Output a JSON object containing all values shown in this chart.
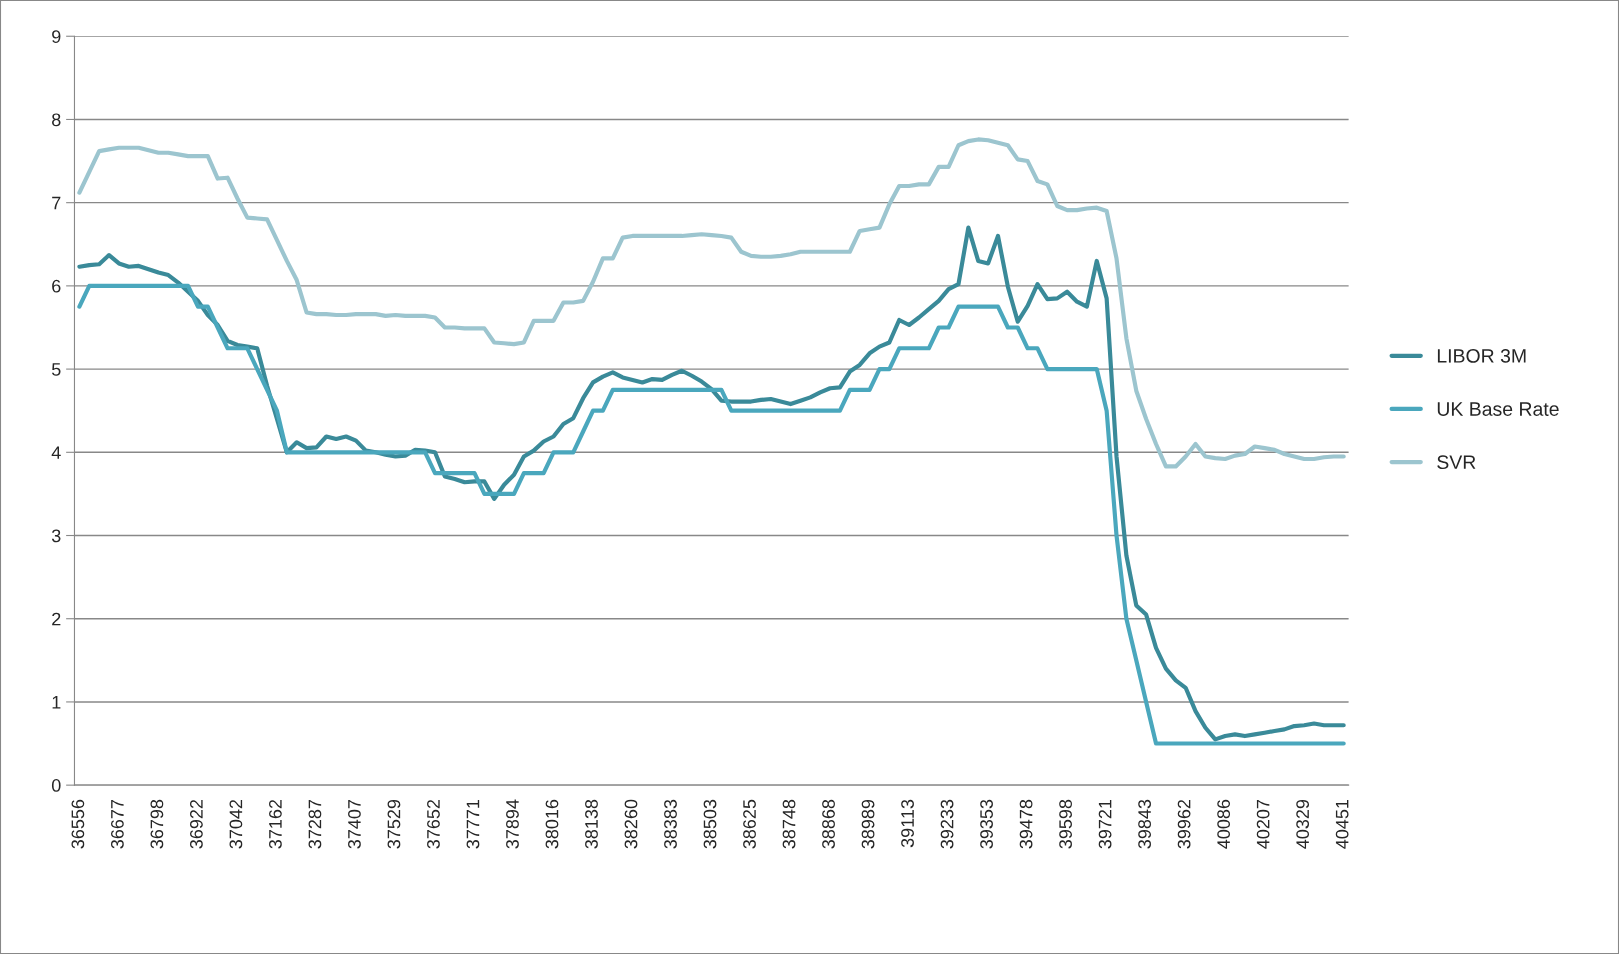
{
  "chart_data": {
    "type": "line",
    "categories": [
      "36556",
      null,
      null,
      null,
      "36677",
      null,
      null,
      null,
      "36798",
      null,
      null,
      null,
      "36922",
      null,
      null,
      null,
      "37042",
      null,
      null,
      null,
      "37162",
      null,
      null,
      null,
      "37287",
      null,
      null,
      null,
      "37407",
      null,
      null,
      null,
      "37529",
      null,
      null,
      null,
      "37652",
      null,
      null,
      null,
      "37771",
      null,
      null,
      null,
      "37894",
      null,
      null,
      null,
      "38016",
      null,
      null,
      null,
      "38138",
      null,
      null,
      null,
      "38260",
      null,
      null,
      null,
      "38383",
      null,
      null,
      null,
      "38503",
      null,
      null,
      null,
      "38625",
      null,
      null,
      null,
      "38748",
      null,
      null,
      null,
      "38868",
      null,
      null,
      null,
      "38989",
      null,
      null,
      null,
      "39113",
      null,
      null,
      null,
      "39233",
      null,
      null,
      null,
      "39353",
      null,
      null,
      null,
      "39478",
      null,
      null,
      null,
      "39598",
      null,
      null,
      null,
      "39721",
      null,
      null,
      null,
      "39843",
      null,
      null,
      null,
      "39962",
      null,
      null,
      null,
      "40086",
      null,
      null,
      null,
      "40207",
      null,
      null,
      null,
      "40329",
      null,
      null,
      null,
      "40451"
    ],
    "series": [
      {
        "name": "LIBOR 3M",
        "color": "#3a8a99",
        "values": [
          6.23,
          6.25,
          6.26,
          6.37,
          6.27,
          6.23,
          6.24,
          6.2,
          6.16,
          6.13,
          6.04,
          5.93,
          5.82,
          5.65,
          5.53,
          5.34,
          5.29,
          5.27,
          5.25,
          4.8,
          4.4,
          4.0,
          4.12,
          4.05,
          4.06,
          4.19,
          4.16,
          4.19,
          4.14,
          4.02,
          4.0,
          3.97,
          3.95,
          3.96,
          4.03,
          4.02,
          4.0,
          3.71,
          3.68,
          3.64,
          3.65,
          3.65,
          3.44,
          3.61,
          3.73,
          3.95,
          4.02,
          4.13,
          4.19,
          4.34,
          4.41,
          4.65,
          4.84,
          4.91,
          4.96,
          4.9,
          4.87,
          4.84,
          4.88,
          4.87,
          4.93,
          4.98,
          4.92,
          4.85,
          4.76,
          4.62,
          4.61,
          4.61,
          4.61,
          4.63,
          4.64,
          4.61,
          4.58,
          4.62,
          4.66,
          4.72,
          4.77,
          4.78,
          4.97,
          5.05,
          5.19,
          5.27,
          5.32,
          5.59,
          5.53,
          5.62,
          5.72,
          5.82,
          5.96,
          6.02,
          6.7,
          6.3,
          6.27,
          6.6,
          5.99,
          5.57,
          5.76,
          6.02,
          5.84,
          5.85,
          5.93,
          5.81,
          5.75,
          6.3,
          5.85,
          3.95,
          2.76,
          2.16,
          2.05,
          1.65,
          1.4,
          1.26,
          1.17,
          0.89,
          0.69,
          0.55,
          0.59,
          0.61,
          0.59,
          0.61,
          0.63,
          0.65,
          0.67,
          0.71,
          0.72,
          0.74,
          0.72,
          0.72,
          0.72
        ]
      },
      {
        "name": "UK Base Rate",
        "color": "#4aa7bd",
        "values": [
          5.75,
          6.0,
          6.0,
          6.0,
          6.0,
          6.0,
          6.0,
          6.0,
          6.0,
          6.0,
          6.0,
          6.0,
          5.75,
          5.75,
          5.5,
          5.25,
          5.25,
          5.25,
          5.0,
          4.75,
          4.5,
          4.0,
          4.0,
          4.0,
          4.0,
          4.0,
          4.0,
          4.0,
          4.0,
          4.0,
          4.0,
          4.0,
          4.0,
          4.0,
          4.0,
          4.0,
          3.75,
          3.75,
          3.75,
          3.75,
          3.75,
          3.5,
          3.5,
          3.5,
          3.5,
          3.75,
          3.75,
          3.75,
          4.0,
          4.0,
          4.0,
          4.25,
          4.5,
          4.5,
          4.75,
          4.75,
          4.75,
          4.75,
          4.75,
          4.75,
          4.75,
          4.75,
          4.75,
          4.75,
          4.75,
          4.75,
          4.5,
          4.5,
          4.5,
          4.5,
          4.5,
          4.5,
          4.5,
          4.5,
          4.5,
          4.5,
          4.5,
          4.5,
          4.75,
          4.75,
          4.75,
          5.0,
          5.0,
          5.25,
          5.25,
          5.25,
          5.25,
          5.5,
          5.5,
          5.75,
          5.75,
          5.75,
          5.75,
          5.75,
          5.5,
          5.5,
          5.25,
          5.25,
          5.0,
          5.0,
          5.0,
          5.0,
          5.0,
          5.0,
          4.5,
          3.0,
          2.0,
          1.5,
          1.0,
          0.5,
          0.5,
          0.5,
          0.5,
          0.5,
          0.5,
          0.5,
          0.5,
          0.5,
          0.5,
          0.5,
          0.5,
          0.5,
          0.5,
          0.5,
          0.5,
          0.5,
          0.5,
          0.5,
          0.5
        ]
      },
      {
        "name": "SVR",
        "color": "#9cc5cf",
        "values": [
          7.12,
          7.37,
          7.62,
          7.64,
          7.66,
          7.66,
          7.66,
          7.63,
          7.6,
          7.6,
          7.58,
          7.56,
          7.56,
          7.56,
          7.29,
          7.3,
          7.05,
          6.82,
          6.81,
          6.8,
          6.55,
          6.3,
          6.07,
          5.68,
          5.66,
          5.66,
          5.65,
          5.65,
          5.66,
          5.66,
          5.66,
          5.64,
          5.65,
          5.64,
          5.64,
          5.64,
          5.62,
          5.5,
          5.5,
          5.49,
          5.49,
          5.49,
          5.32,
          5.31,
          5.3,
          5.32,
          5.58,
          5.58,
          5.58,
          5.8,
          5.8,
          5.82,
          6.05,
          6.33,
          6.33,
          6.58,
          6.6,
          6.6,
          6.6,
          6.6,
          6.6,
          6.6,
          6.61,
          6.62,
          6.61,
          6.6,
          6.58,
          6.41,
          6.36,
          6.35,
          6.35,
          6.36,
          6.38,
          6.41,
          6.41,
          6.41,
          6.41,
          6.41,
          6.41,
          6.66,
          6.68,
          6.7,
          6.98,
          7.2,
          7.2,
          7.22,
          7.22,
          7.43,
          7.43,
          7.69,
          7.74,
          7.76,
          7.75,
          7.72,
          7.69,
          7.52,
          7.5,
          7.26,
          7.22,
          6.96,
          6.91,
          6.91,
          6.93,
          6.94,
          6.9,
          6.33,
          5.37,
          4.74,
          4.4,
          4.1,
          3.83,
          3.83,
          3.95,
          4.1,
          3.95,
          3.93,
          3.92,
          3.96,
          3.98,
          4.07,
          4.05,
          4.03,
          3.98,
          3.95,
          3.92,
          3.92,
          3.94,
          3.95,
          3.95
        ]
      }
    ],
    "ylim": [
      0,
      9
    ],
    "yticks": [
      0,
      1,
      2,
      3,
      4,
      5,
      6,
      7,
      8,
      9
    ],
    "grid": "y",
    "legend": "right",
    "marker": "none",
    "line_style": "solid"
  }
}
